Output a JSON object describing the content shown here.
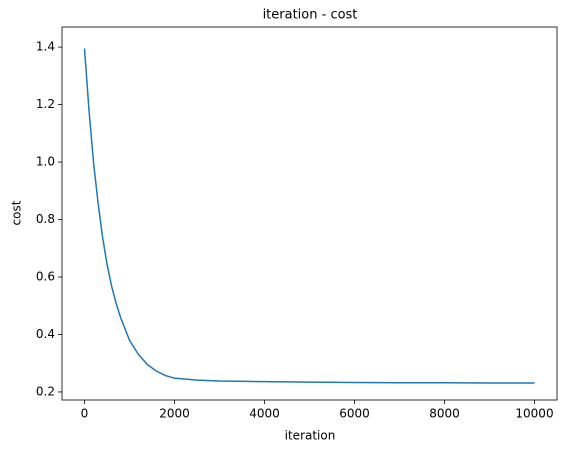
{
  "chart_data": {
    "type": "line",
    "title": "iteration - cost",
    "xlabel": "iteration",
    "ylabel": "cost",
    "x": [
      0,
      100,
      200,
      300,
      400,
      500,
      600,
      700,
      800,
      900,
      1000,
      1200,
      1400,
      1600,
      1800,
      2000,
      2500,
      3000,
      4000,
      5000,
      6000,
      7000,
      8000,
      9000,
      10000
    ],
    "series": [
      {
        "name": "cost",
        "color": "#1f77b4",
        "values": [
          1.395,
          1.18,
          1.0,
          0.86,
          0.74,
          0.645,
          0.57,
          0.51,
          0.46,
          0.42,
          0.38,
          0.33,
          0.295,
          0.272,
          0.257,
          0.248,
          0.241,
          0.238,
          0.236,
          0.234,
          0.233,
          0.232,
          0.232,
          0.231,
          0.231
        ]
      }
    ],
    "xlim": [
      -500,
      10500
    ],
    "ylim": [
      0.172,
      1.47
    ],
    "xticks": [
      0,
      2000,
      4000,
      6000,
      8000,
      10000
    ],
    "yticks": [
      0.2,
      0.4,
      0.6,
      0.8,
      {
        "value": 1,
        "label": "1.0"
      },
      1.2,
      1.4
    ]
  }
}
